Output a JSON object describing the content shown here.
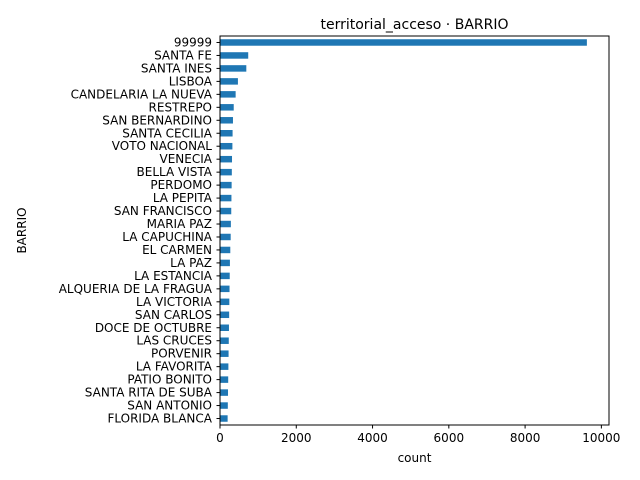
{
  "chart_data": {
    "type": "bar",
    "orientation": "horizontal",
    "title": "territorial_acceso · BARRIO",
    "xlabel": "count",
    "ylabel": "BARRIO",
    "xlim": [
      0,
      10200
    ],
    "xticks": [
      0,
      2000,
      4000,
      6000,
      8000,
      10000
    ],
    "grid": false,
    "bar_color": "#1f77b4",
    "categories": [
      "99999",
      "SANTA FE",
      "SANTA INES",
      "LISBOA",
      "CANDELARIA LA NUEVA",
      "RESTREPO",
      "SAN BERNARDINO",
      "SANTA CECILIA",
      "VOTO NACIONAL",
      "VENECIA",
      "BELLA VISTA",
      "PERDOMO",
      "LA PEPITA",
      "SAN FRANCISCO",
      "MARIA PAZ",
      "LA CAPUCHINA",
      "EL CARMEN",
      "LA PAZ",
      "LA ESTANCIA",
      "ALQUERIA DE LA FRAGUA",
      "LA VICTORIA",
      "SAN CARLOS",
      "DOCE DE OCTUBRE",
      "LAS CRUCES",
      "PORVENIR",
      "LA FAVORITA",
      "PATIO BONITO",
      "SANTA RITA DE SUBA",
      "SAN ANTONIO",
      "FLORIDA BLANCA"
    ],
    "values": [
      9620,
      740,
      690,
      470,
      410,
      360,
      340,
      330,
      325,
      315,
      310,
      305,
      300,
      295,
      285,
      280,
      270,
      260,
      255,
      250,
      245,
      240,
      235,
      230,
      225,
      220,
      215,
      210,
      205,
      200
    ]
  }
}
